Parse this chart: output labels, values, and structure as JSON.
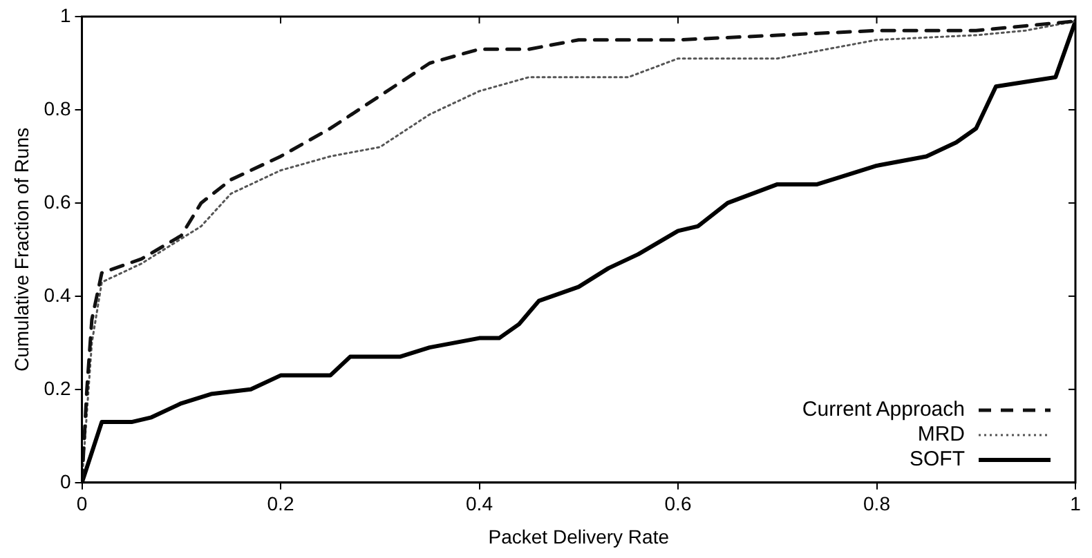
{
  "chart_data": {
    "type": "line",
    "xlabel": "Packet Delivery Rate",
    "ylabel": "Cumulative Fraction of Runs",
    "xlim": [
      0,
      1
    ],
    "ylim": [
      0,
      1
    ],
    "xticks": [
      0,
      0.2,
      0.4,
      0.6,
      0.8,
      1
    ],
    "yticks": [
      0,
      0.2,
      0.4,
      0.6,
      0.8,
      1
    ],
    "grid": false,
    "legend": "bottom right",
    "marker": "none",
    "series": [
      {
        "name": "Current Approach",
        "color": "#111111",
        "line_style": "dashed",
        "x": [
          0,
          0.005,
          0.01,
          0.02,
          0.06,
          0.1,
          0.12,
          0.15,
          0.2,
          0.25,
          0.3,
          0.35,
          0.4,
          0.45,
          0.5,
          0.6,
          0.7,
          0.8,
          0.9,
          0.95,
          1
        ],
        "values": [
          0,
          0.2,
          0.35,
          0.45,
          0.48,
          0.53,
          0.6,
          0.65,
          0.7,
          0.76,
          0.83,
          0.9,
          0.93,
          0.93,
          0.95,
          0.95,
          0.96,
          0.97,
          0.97,
          0.98,
          0.99
        ]
      },
      {
        "name": "MRD",
        "color": "#555555",
        "line_style": "dotted",
        "x": [
          0,
          0.01,
          0.02,
          0.06,
          0.12,
          0.15,
          0.2,
          0.25,
          0.3,
          0.35,
          0.4,
          0.45,
          0.55,
          0.6,
          0.7,
          0.75,
          0.8,
          0.9,
          0.95,
          1
        ],
        "values": [
          0,
          0.3,
          0.43,
          0.47,
          0.55,
          0.62,
          0.67,
          0.7,
          0.72,
          0.79,
          0.84,
          0.87,
          0.87,
          0.91,
          0.91,
          0.93,
          0.95,
          0.96,
          0.97,
          0.99
        ]
      },
      {
        "name": "SOFT",
        "color": "#000000",
        "line_style": "solid",
        "x": [
          0,
          0.02,
          0.05,
          0.07,
          0.1,
          0.13,
          0.17,
          0.2,
          0.25,
          0.27,
          0.32,
          0.35,
          0.4,
          0.42,
          0.44,
          0.46,
          0.5,
          0.53,
          0.56,
          0.6,
          0.62,
          0.65,
          0.7,
          0.74,
          0.8,
          0.85,
          0.88,
          0.9,
          0.92,
          0.95,
          0.98,
          1
        ],
        "values": [
          0,
          0.13,
          0.13,
          0.14,
          0.17,
          0.19,
          0.2,
          0.23,
          0.23,
          0.27,
          0.27,
          0.29,
          0.31,
          0.31,
          0.34,
          0.39,
          0.42,
          0.46,
          0.49,
          0.54,
          0.55,
          0.6,
          0.64,
          0.64,
          0.68,
          0.7,
          0.73,
          0.76,
          0.85,
          0.86,
          0.87,
          0.99
        ]
      }
    ]
  }
}
